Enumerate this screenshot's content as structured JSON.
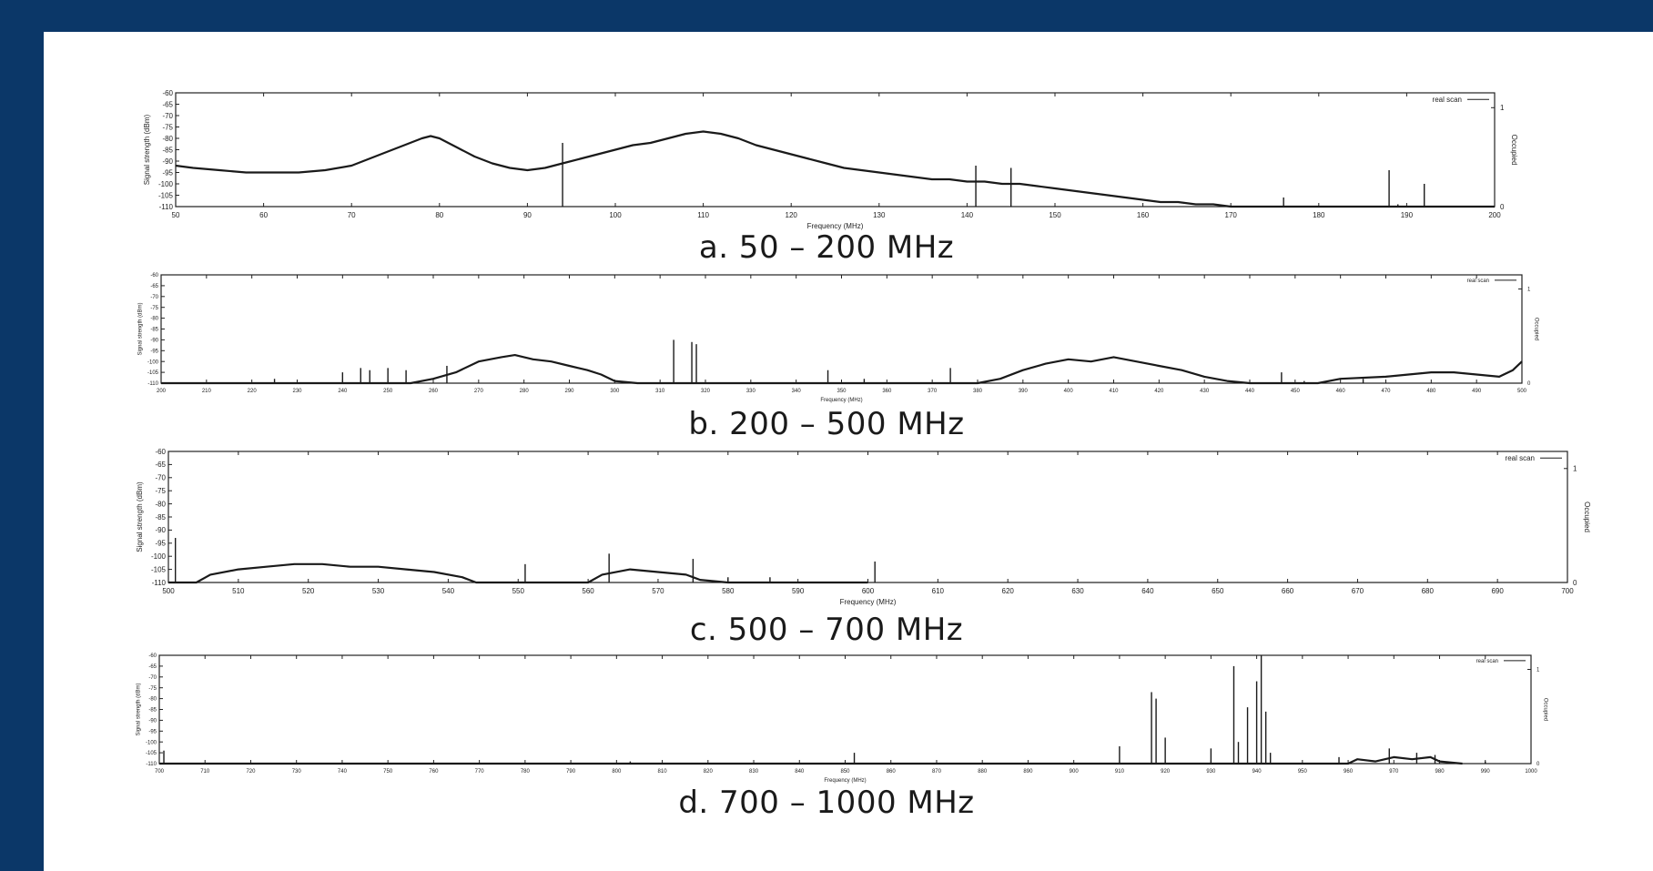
{
  "colors": {
    "frame": "#0b3768",
    "panel": "#ffffff",
    "trace": "#1a1a1a",
    "axis": "#222222"
  },
  "chart_data": [
    {
      "type": "line",
      "caption": "a. 50 – 200 MHz",
      "xlabel": "Frequency (MHz)",
      "ylabel": "Signal strength (dBm)",
      "y2label": "Occupied",
      "legend": "real scan",
      "legend_position": "top-right",
      "xlim": [
        50,
        200
      ],
      "ylim": [
        -110,
        -60
      ],
      "y2lim": [
        0,
        1.15
      ],
      "xticks": [
        50,
        60,
        70,
        80,
        90,
        100,
        110,
        120,
        130,
        140,
        150,
        160,
        170,
        180,
        190,
        200
      ],
      "yticks": [
        -60,
        -65,
        -70,
        -75,
        -80,
        -85,
        -90,
        -95,
        -100,
        -105,
        -110
      ],
      "y2ticks": [
        0,
        1
      ],
      "baseline": -110,
      "series": [
        {
          "x": [
            50,
            52,
            55,
            58,
            61,
            64,
            67,
            70,
            72,
            74,
            76,
            78,
            79,
            80,
            82,
            84,
            86,
            88,
            90,
            92,
            94,
            96,
            98,
            100,
            102,
            104,
            106,
            108,
            110,
            112,
            114,
            116,
            118,
            120,
            122,
            124,
            126,
            128,
            130,
            132,
            134,
            136,
            138,
            140,
            142,
            144,
            146,
            148,
            150,
            152,
            154,
            156,
            158,
            160,
            162,
            164,
            166,
            168,
            170,
            175,
            180,
            185,
            190,
            195,
            200
          ],
          "y": [
            -92,
            -93,
            -94,
            -95,
            -95,
            -95,
            -94,
            -92,
            -89,
            -86,
            -83,
            -80,
            -79,
            -80,
            -84,
            -88,
            -91,
            -93,
            -94,
            -93,
            -91,
            -89,
            -87,
            -85,
            -83,
            -82,
            -80,
            -78,
            -77,
            -78,
            -80,
            -83,
            -85,
            -87,
            -89,
            -91,
            -93,
            -94,
            -95,
            -96,
            -97,
            -98,
            -98,
            -99,
            -99,
            -100,
            -100,
            -101,
            -102,
            -103,
            -104,
            -105,
            -106,
            -107,
            -108,
            -108,
            -109,
            -109,
            -110,
            -110,
            -110,
            -110,
            -110,
            -110,
            -110
          ]
        }
      ],
      "spikes": [
        [
          94,
          -82
        ],
        [
          141,
          -92
        ],
        [
          145,
          -93
        ],
        [
          176,
          -106
        ],
        [
          188,
          -94
        ],
        [
          189,
          -109
        ],
        [
          192,
          -100
        ]
      ]
    },
    {
      "type": "line",
      "caption": "b. 200 – 500 MHz",
      "xlabel": "Frequency (MHz)",
      "ylabel": "Signal strength (dBm)",
      "y2label": "Occupied",
      "legend": "real scan",
      "legend_position": "top-right",
      "xlim": [
        200,
        500
      ],
      "ylim": [
        -110,
        -60
      ],
      "y2lim": [
        0,
        1.15
      ],
      "xticks": [
        200,
        210,
        220,
        230,
        240,
        250,
        260,
        270,
        280,
        290,
        300,
        310,
        320,
        330,
        340,
        350,
        360,
        370,
        380,
        390,
        400,
        410,
        420,
        430,
        440,
        450,
        460,
        470,
        480,
        490,
        500
      ],
      "yticks": [
        -60,
        -65,
        -70,
        -75,
        -80,
        -85,
        -90,
        -95,
        -100,
        -105,
        -110
      ],
      "y2ticks": [
        0,
        1
      ],
      "baseline": -110,
      "series": [
        {
          "x": [
            200,
            240,
            255,
            260,
            265,
            270,
            275,
            278,
            282,
            286,
            290,
            294,
            297,
            300,
            305,
            380,
            385,
            390,
            395,
            400,
            405,
            410,
            415,
            420,
            425,
            430,
            435,
            440,
            445,
            455,
            460,
            470,
            475,
            480,
            485,
            490,
            495,
            498,
            500
          ],
          "y": [
            -110,
            -110,
            -110,
            -108,
            -105,
            -100,
            -98,
            -97,
            -99,
            -100,
            -102,
            -104,
            -106,
            -109,
            -110,
            -110,
            -108,
            -104,
            -101,
            -99,
            -100,
            -98,
            -100,
            -102,
            -104,
            -107,
            -109,
            -110,
            -110,
            -110,
            -108,
            -107,
            -106,
            -105,
            -105,
            -106,
            -107,
            -104,
            -100
          ]
        }
      ],
      "spikes": [
        [
          225,
          -108
        ],
        [
          240,
          -105
        ],
        [
          244,
          -103
        ],
        [
          246,
          -104
        ],
        [
          250,
          -103
        ],
        [
          254,
          -104
        ],
        [
          263,
          -102
        ],
        [
          313,
          -90
        ],
        [
          317,
          -91
        ],
        [
          318,
          -92
        ],
        [
          347,
          -104
        ],
        [
          355,
          -108
        ],
        [
          374,
          -103
        ],
        [
          447,
          -105
        ],
        [
          452,
          -109
        ],
        [
          465,
          -108
        ]
      ]
    },
    {
      "type": "line",
      "caption": "c. 500 – 700 MHz",
      "xlabel": "Frequency (MHz)",
      "ylabel": "Signal strength (dBm)",
      "y2label": "Occupied",
      "legend": "real scan",
      "legend_position": "top-right",
      "xlim": [
        500,
        700
      ],
      "ylim": [
        -110,
        -60
      ],
      "y2lim": [
        0,
        1.15
      ],
      "xticks": [
        500,
        510,
        520,
        530,
        540,
        550,
        560,
        570,
        580,
        590,
        600,
        610,
        620,
        630,
        640,
        650,
        660,
        670,
        680,
        690,
        700
      ],
      "yticks": [
        -60,
        -65,
        -70,
        -75,
        -80,
        -85,
        -90,
        -95,
        -100,
        -105,
        -110
      ],
      "y2ticks": [
        0,
        1
      ],
      "baseline": -110,
      "series": [
        {
          "x": [
            500,
            504,
            506,
            510,
            514,
            518,
            522,
            526,
            530,
            534,
            538,
            542,
            544,
            560,
            562,
            566,
            570,
            574,
            576,
            580,
            590,
            600
          ],
          "y": [
            -110,
            -110,
            -107,
            -105,
            -104,
            -103,
            -103,
            -104,
            -104,
            -105,
            -106,
            -108,
            -110,
            -110,
            -107,
            -105,
            -106,
            -107,
            -109,
            -110,
            -110,
            -110
          ]
        }
      ],
      "spikes": [
        [
          501,
          -93
        ],
        [
          551,
          -103
        ],
        [
          563,
          -99
        ],
        [
          575,
          -101
        ],
        [
          580,
          -108
        ],
        [
          586,
          -108
        ],
        [
          601,
          -102
        ],
        [
          665,
          -110
        ]
      ]
    },
    {
      "type": "line",
      "caption": "d. 700 – 1000 MHz",
      "xlabel": "Frequency (MHz)",
      "ylabel": "Signal strength (dBm)",
      "y2label": "Occupied",
      "legend": "real scan",
      "legend_position": "top-right",
      "xlim": [
        700,
        1000
      ],
      "ylim": [
        -110,
        -60
      ],
      "y2lim": [
        0,
        1.15
      ],
      "xticks": [
        700,
        710,
        720,
        730,
        740,
        750,
        760,
        770,
        780,
        790,
        800,
        810,
        820,
        830,
        840,
        850,
        860,
        870,
        880,
        890,
        900,
        910,
        920,
        930,
        940,
        950,
        960,
        970,
        980,
        990,
        1000
      ],
      "yticks": [
        -60,
        -65,
        -70,
        -75,
        -80,
        -85,
        -90,
        -95,
        -100,
        -105,
        -110
      ],
      "y2ticks": [
        0,
        1
      ],
      "baseline": -110,
      "series": [
        {
          "x": [
            700,
            960,
            962,
            966,
            970,
            974,
            978,
            980,
            985
          ],
          "y": [
            -110,
            -110,
            -108,
            -109,
            -107,
            -108,
            -107,
            -109,
            -110
          ]
        }
      ],
      "spikes": [
        [
          701,
          -104
        ],
        [
          803,
          -109
        ],
        [
          852,
          -105
        ],
        [
          910,
          -102
        ],
        [
          917,
          -77
        ],
        [
          918,
          -80
        ],
        [
          920,
          -98
        ],
        [
          930,
          -103
        ],
        [
          935,
          -65
        ],
        [
          936,
          -100
        ],
        [
          938,
          -84
        ],
        [
          940,
          -72
        ],
        [
          941,
          -60
        ],
        [
          942,
          -86
        ],
        [
          943,
          -105
        ],
        [
          958,
          -107
        ],
        [
          969,
          -103
        ],
        [
          975,
          -105
        ],
        [
          979,
          -106
        ],
        [
          990,
          -109
        ]
      ]
    }
  ]
}
